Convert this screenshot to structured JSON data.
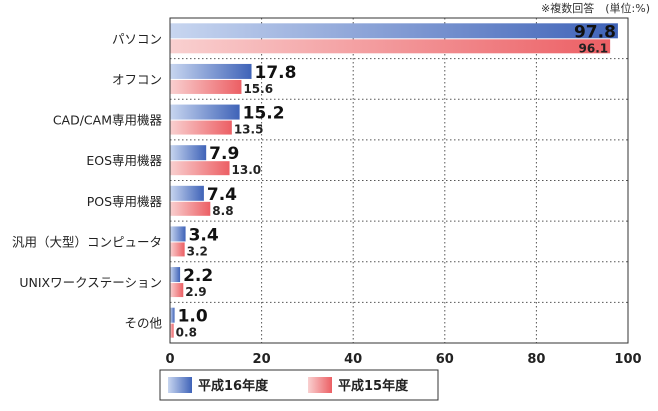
{
  "chart_data": {
    "type": "bar",
    "orientation": "horizontal",
    "note": "※複数回答　(単位:%)",
    "categories": [
      "パソコン",
      "オフコン",
      "CAD/CAM専用機器",
      "EOS専用機器",
      "POS専用機器",
      "汎用（大型）コンピュータ",
      "UNIXワークステーション",
      "その他"
    ],
    "series": [
      {
        "name": "平成16年度",
        "values": [
          97.8,
          17.8,
          15.2,
          7.9,
          7.4,
          3.4,
          2.2,
          1.0
        ],
        "labels": [
          "97.8",
          "17.8",
          "15.2",
          "7.9",
          "7.4",
          "3.4",
          "2.2",
          "1.0"
        ],
        "color_start": "#c8d6f0",
        "color_end": "#3f63b8"
      },
      {
        "name": "平成15年度",
        "values": [
          96.1,
          15.6,
          13.5,
          13.0,
          8.8,
          3.2,
          2.9,
          0.8
        ],
        "labels": [
          "96.1",
          "15.6",
          "13.5",
          "13.0",
          "8.8",
          "3.2",
          "2.9",
          "0.8"
        ],
        "color_start": "#f9d0d0",
        "color_end": "#ec5f64"
      }
    ],
    "x_ticks": [
      "0",
      "20",
      "40",
      "60",
      "80",
      "100"
    ],
    "x_tick_values": [
      0,
      20,
      40,
      60,
      80,
      100
    ],
    "xlim": [
      0,
      100
    ],
    "grid": true,
    "grid_style": "dotted",
    "legend_position": "bottom"
  }
}
